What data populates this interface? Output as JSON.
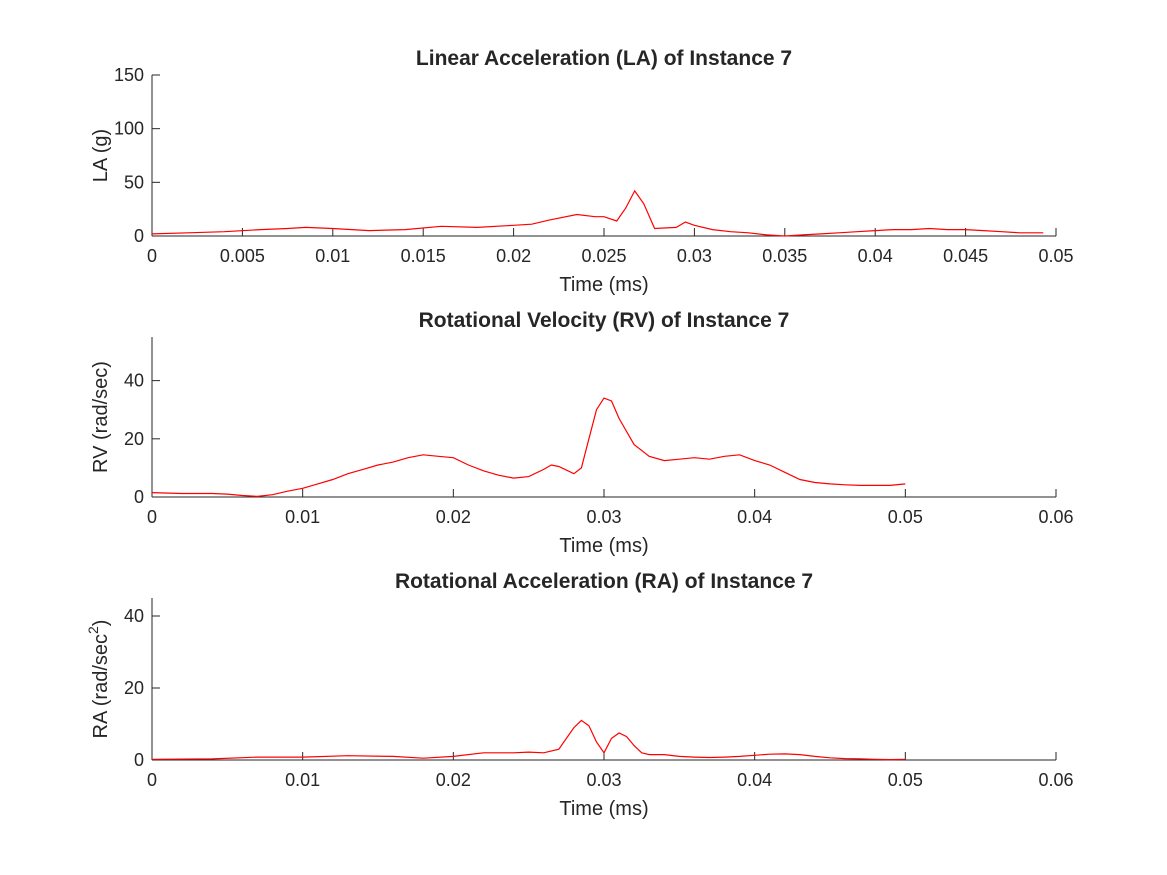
{
  "chart_data": [
    {
      "type": "line",
      "title": "Linear Acceleration (LA) of Instance 7",
      "xlabel": "Time (ms)",
      "ylabel": "LA (g)",
      "xlim": [
        0,
        0.05
      ],
      "ylim": [
        0,
        150
      ],
      "xticks": [
        0,
        0.005,
        0.01,
        0.015,
        0.02,
        0.025,
        0.03,
        0.035,
        0.04,
        0.045,
        0.05
      ],
      "xtick_labels": [
        "0",
        "0.005",
        "0.01",
        "0.015",
        "0.02",
        "0.025",
        "0.03",
        "0.035",
        "0.04",
        "0.045",
        "0.05"
      ],
      "yticks": [
        0,
        50,
        100,
        150
      ],
      "ytick_labels": [
        "0",
        "50",
        "100",
        "150"
      ],
      "grid": false,
      "series": [
        {
          "color": "#ff0000",
          "x": [
            0,
            0.002,
            0.004,
            0.006,
            0.0075,
            0.0085,
            0.01,
            0.012,
            0.014,
            0.016,
            0.018,
            0.02,
            0.021,
            0.022,
            0.0235,
            0.0245,
            0.025,
            0.0257,
            0.0262,
            0.0267,
            0.0272,
            0.0278,
            0.029,
            0.0295,
            0.03,
            0.031,
            0.032,
            0.033,
            0.034,
            0.035,
            0.036,
            0.037,
            0.038,
            0.039,
            0.04,
            0.041,
            0.042,
            0.043,
            0.044,
            0.045,
            0.046,
            0.047,
            0.048,
            0.0493
          ],
          "y": [
            2,
            3,
            4,
            6,
            7,
            8,
            7,
            5,
            6,
            9,
            8,
            10,
            11,
            15,
            20,
            18,
            18,
            14,
            26,
            42,
            30,
            7,
            8,
            13,
            10,
            6,
            4,
            3,
            1,
            0,
            1,
            2,
            3,
            4,
            5,
            6,
            6,
            7,
            6,
            6,
            5,
            4,
            3,
            3
          ]
        }
      ]
    },
    {
      "type": "line",
      "title": "Rotational Velocity (RV) of Instance 7",
      "xlabel": "Time (ms)",
      "ylabel": "RV (rad/sec)",
      "xlim": [
        0,
        0.06
      ],
      "ylim": [
        0,
        55
      ],
      "xticks": [
        0,
        0.01,
        0.02,
        0.03,
        0.04,
        0.05,
        0.06
      ],
      "xtick_labels": [
        "0",
        "0.01",
        "0.02",
        "0.03",
        "0.04",
        "0.05",
        "0.06"
      ],
      "yticks": [
        0,
        20,
        40
      ],
      "ytick_labels": [
        "0",
        "20",
        "40"
      ],
      "grid": false,
      "series": [
        {
          "color": "#ff0000",
          "x": [
            0,
            0.002,
            0.004,
            0.005,
            0.006,
            0.007,
            0.008,
            0.009,
            0.01,
            0.011,
            0.012,
            0.013,
            0.014,
            0.015,
            0.016,
            0.017,
            0.018,
            0.019,
            0.02,
            0.021,
            0.022,
            0.023,
            0.024,
            0.025,
            0.026,
            0.0265,
            0.027,
            0.028,
            0.0285,
            0.029,
            0.0295,
            0.03,
            0.0305,
            0.031,
            0.032,
            0.033,
            0.034,
            0.035,
            0.036,
            0.037,
            0.038,
            0.039,
            0.04,
            0.041,
            0.042,
            0.043,
            0.044,
            0.045,
            0.046,
            0.047,
            0.048,
            0.049,
            0.05
          ],
          "y": [
            1.5,
            1.2,
            1.2,
            1.0,
            0.5,
            0.2,
            0.8,
            2.0,
            3.0,
            4.5,
            6.0,
            8.0,
            9.5,
            11.0,
            12.0,
            13.5,
            14.5,
            14.0,
            13.5,
            11.0,
            9.0,
            7.5,
            6.5,
            7.0,
            9.5,
            11.0,
            10.5,
            8.0,
            10.0,
            20.0,
            30.0,
            34.0,
            33.0,
            27.0,
            18.0,
            14.0,
            12.5,
            13.0,
            13.5,
            13.0,
            14.0,
            14.5,
            12.5,
            11.0,
            8.5,
            6.0,
            5.0,
            4.5,
            4.2,
            4.0,
            4.0,
            4.0,
            4.5
          ]
        }
      ]
    },
    {
      "type": "line",
      "title": "Rotational Acceleration (RA) of Instance 7",
      "xlabel": "Time (ms)",
      "ylabel": "RA (rad/sec",
      "ylabel_superscript": "2",
      "ylabel_suffix": ")",
      "xlim": [
        0,
        0.06
      ],
      "ylim": [
        0,
        45
      ],
      "xticks": [
        0,
        0.01,
        0.02,
        0.03,
        0.04,
        0.05,
        0.06
      ],
      "xtick_labels": [
        "0",
        "0.01",
        "0.02",
        "0.03",
        "0.04",
        "0.05",
        "0.06"
      ],
      "yticks": [
        0,
        20,
        40
      ],
      "ytick_labels": [
        "0",
        "20",
        "40"
      ],
      "grid": false,
      "series": [
        {
          "color": "#ff0000",
          "x": [
            0,
            0.004,
            0.007,
            0.01,
            0.013,
            0.016,
            0.018,
            0.02,
            0.022,
            0.024,
            0.025,
            0.026,
            0.027,
            0.028,
            0.0285,
            0.029,
            0.0295,
            0.03,
            0.0305,
            0.031,
            0.0315,
            0.032,
            0.0325,
            0.033,
            0.034,
            0.035,
            0.036,
            0.037,
            0.038,
            0.039,
            0.04,
            0.041,
            0.042,
            0.043,
            0.044,
            0.045,
            0.046,
            0.047,
            0.048,
            0.049,
            0.05
          ],
          "y": [
            0.2,
            0.3,
            0.8,
            0.8,
            1.2,
            1.0,
            0.5,
            1.0,
            2.0,
            2.0,
            2.2,
            2.0,
            3.0,
            9.0,
            11.0,
            9.5,
            5.0,
            2.0,
            6.0,
            7.5,
            6.5,
            4.0,
            2.0,
            1.5,
            1.5,
            1.0,
            0.8,
            0.7,
            0.8,
            1.0,
            1.3,
            1.6,
            1.7,
            1.5,
            1.0,
            0.6,
            0.4,
            0.3,
            0.2,
            0.1,
            0.2
          ]
        }
      ]
    }
  ]
}
